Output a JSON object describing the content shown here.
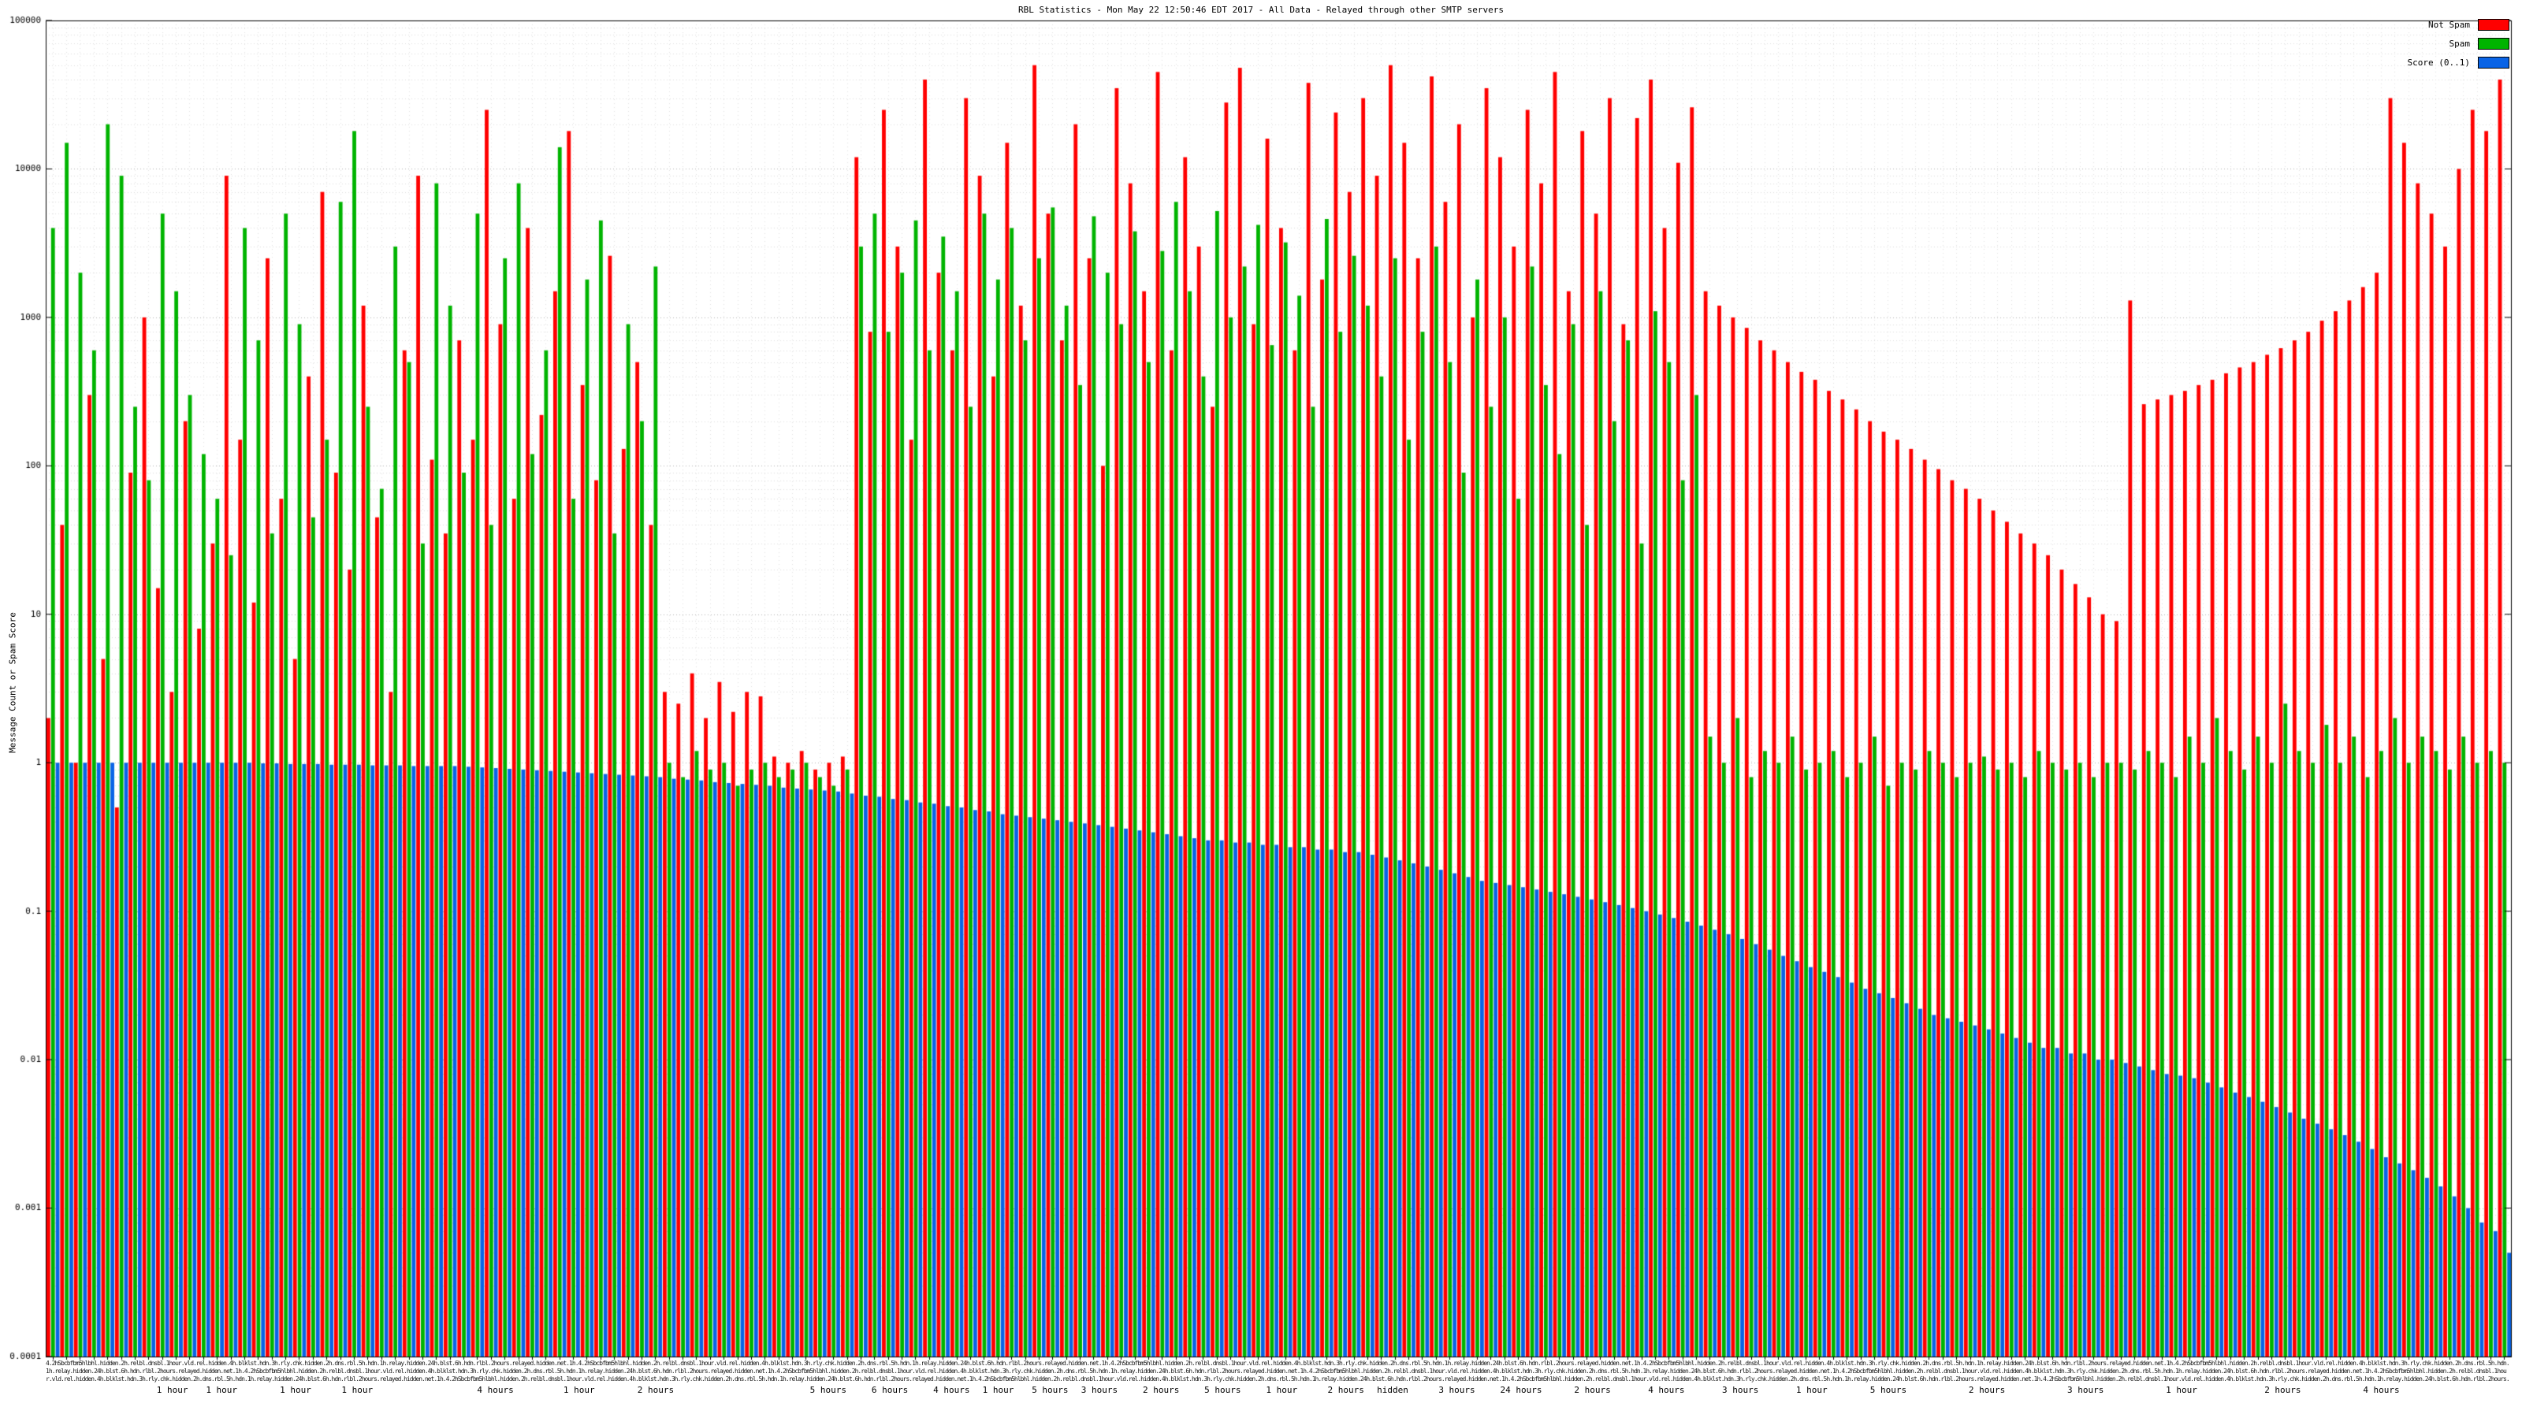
{
  "title": "RBL Statistics - Mon May 22 12:50:46 EDT 2017 - All Data - Relayed through other SMTP servers",
  "y_axis": {
    "label": "Message Count or Spam Score",
    "scale": "log",
    "min": 0.0001,
    "max": 100000,
    "ticks": [
      100000,
      10000,
      1000,
      100,
      10,
      1,
      0.1,
      0.01,
      0.001,
      0.0001
    ]
  },
  "x_axis": {
    "dense_label_texture": "4.2hSbcbfbm5hlbhl.hidden.2h.relbl.dnsbl.1hour.vld.rel.hidden.4h.blklst.hdn.3h.rly.chk.hidden.2h.dns.rbl.5h.hdn.1h.relay.hidden.24h.blst.6h.hdn.rlbl.2hours.relayed.hidden.net.1h.",
    "time_labels": [
      {
        "text": "1 hour",
        "pos": 4.5
      },
      {
        "text": "1 hour",
        "pos": 6.5
      },
      {
        "text": "1 hour",
        "pos": 9.5
      },
      {
        "text": "1 hour",
        "pos": 12.0
      },
      {
        "text": "4 hours",
        "pos": 17.5
      },
      {
        "text": "1 hour",
        "pos": 21.0
      },
      {
        "text": "2 hours",
        "pos": 24.0
      },
      {
        "text": "5 hours",
        "pos": 31.0
      },
      {
        "text": "6 hours",
        "pos": 33.5
      },
      {
        "text": "4 hours",
        "pos": 36.0
      },
      {
        "text": "1 hour",
        "pos": 38.0
      },
      {
        "text": "5 hours",
        "pos": 40.0
      },
      {
        "text": "3 hours",
        "pos": 42.0
      },
      {
        "text": "2 hours",
        "pos": 44.5
      },
      {
        "text": "5 hours",
        "pos": 47.0
      },
      {
        "text": "1 hour",
        "pos": 49.5
      },
      {
        "text": "2 hours",
        "pos": 52.0
      },
      {
        "text": "hidden",
        "pos": 54.0
      },
      {
        "text": "3 hours",
        "pos": 56.5
      },
      {
        "text": "24 hours",
        "pos": 59.0
      },
      {
        "text": "2 hours",
        "pos": 62.0
      },
      {
        "text": "4 hours",
        "pos": 65.0
      },
      {
        "text": "3 hours",
        "pos": 68.0
      },
      {
        "text": "1 hour",
        "pos": 71.0
      },
      {
        "text": "5 hours",
        "pos": 74.0
      },
      {
        "text": "2 hours",
        "pos": 78.0
      },
      {
        "text": "3 hours",
        "pos": 82.0
      },
      {
        "text": "1 hour",
        "pos": 86.0
      },
      {
        "text": "2 hours",
        "pos": 90.0
      },
      {
        "text": "4 hours",
        "pos": 94.0
      }
    ]
  },
  "chart_data": {
    "type": "bar",
    "yscale": "log",
    "ylim": [
      0.0001,
      100000
    ],
    "grid": true,
    "legend_position": "top-right",
    "series": [
      {
        "name": "Not Spam",
        "color": "#ff0000",
        "values": [
          2,
          40,
          1,
          300,
          5,
          0.5,
          90,
          1000,
          15,
          3,
          200,
          8,
          30,
          9000,
          150,
          12,
          2500,
          60,
          5,
          400,
          7000,
          90,
          20,
          1200,
          45,
          3,
          600,
          9000,
          110,
          35,
          700,
          150,
          25000,
          900,
          60,
          4000,
          220,
          1500,
          18000,
          350,
          80,
          2600,
          130,
          500,
          40,
          3,
          2.5,
          4,
          2,
          3.5,
          2.2,
          3,
          2.8,
          1.1,
          1,
          1.2,
          0.9,
          1,
          1.1,
          12000,
          800,
          25000,
          3000,
          150,
          40000,
          2000,
          600,
          30000,
          9000,
          400,
          15000,
          1200,
          50000,
          5000,
          700,
          20000,
          2500,
          100,
          35000,
          8000,
          1500,
          45000,
          600,
          12000,
          3000,
          250,
          28000,
          48000,
          900,
          16000,
          4000,
          600,
          38000,
          1800,
          24000,
          7000,
          30000,
          9000,
          50000,
          15000,
          2500,
          42000,
          6000,
          20000,
          1000,
          35000,
          12000,
          3000,
          25000,
          8000,
          45000,
          1500,
          18000,
          5000,
          30000,
          900,
          22000,
          40000,
          4000,
          11000,
          26000,
          1500,
          1200,
          1000,
          850,
          700,
          600,
          500,
          430,
          380,
          320,
          280,
          240,
          200,
          170,
          150,
          130,
          110,
          95,
          80,
          70,
          60,
          50,
          42,
          35,
          30,
          25,
          20,
          16,
          13,
          10,
          9,
          1300,
          260,
          280,
          300,
          320,
          350,
          380,
          420,
          460,
          500,
          560,
          620,
          700,
          800,
          950,
          1100,
          1300,
          1600,
          2000,
          30000,
          15000,
          8000,
          5000,
          3000,
          10000,
          25000,
          18000,
          40000
        ]
      },
      {
        "name": "Spam",
        "color": "#00b400",
        "values": [
          4000,
          15000,
          2000,
          600,
          20000,
          9000,
          250,
          80,
          5000,
          1500,
          300,
          120,
          60,
          25,
          4000,
          700,
          35,
          5000,
          900,
          45,
          150,
          6000,
          18000,
          250,
          70,
          3000,
          500,
          30,
          8000,
          1200,
          90,
          5000,
          40,
          2500,
          8000,
          120,
          600,
          14000,
          60,
          1800,
          4500,
          35,
          900,
          200,
          2200,
          1,
          0.8,
          1.2,
          0.9,
          1,
          0.7,
          0.9,
          1,
          0.8,
          0.9,
          1,
          0.8,
          0.7,
          0.9,
          3000,
          5000,
          800,
          2000,
          4500,
          600,
          3500,
          1500,
          250,
          5000,
          1800,
          4000,
          700,
          2500,
          5500,
          1200,
          350,
          4800,
          2000,
          900,
          3800,
          500,
          2800,
          6000,
          1500,
          400,
          5200,
          1000,
          2200,
          4200,
          650,
          3200,
          1400,
          250,
          4600,
          800,
          2600,
          1200,
          400,
          2500,
          150,
          800,
          3000,
          500,
          90,
          1800,
          250,
          1000,
          60,
          2200,
          350,
          120,
          900,
          40,
          1500,
          200,
          700,
          30,
          1100,
          500,
          80,
          300,
          1.5,
          1,
          2,
          0.8,
          1.2,
          1,
          1.5,
          0.9,
          1,
          1.2,
          0.8,
          1,
          1.5,
          0.7,
          1,
          0.9,
          1.2,
          1,
          0.8,
          1,
          1.1,
          0.9,
          1,
          0.8,
          1.2,
          1,
          0.9,
          1,
          0.8,
          1,
          1,
          0.9,
          1.2,
          1,
          0.8,
          1.5,
          1,
          2,
          1.2,
          0.9,
          1.5,
          1,
          2.5,
          1.2,
          1,
          1.8,
          1,
          1.5,
          0.8,
          1.2,
          2,
          1,
          1.5,
          1.2,
          0.9,
          1.5,
          1,
          1.2,
          1
        ]
      },
      {
        "name": "Score (0..1)",
        "color": "#0a64e6",
        "values": [
          1,
          1,
          1,
          1,
          1,
          1,
          1,
          1,
          1,
          1,
          1,
          1,
          1,
          1,
          1,
          0.99,
          0.99,
          0.98,
          0.98,
          0.98,
          0.97,
          0.97,
          0.97,
          0.96,
          0.96,
          0.96,
          0.95,
          0.95,
          0.95,
          0.95,
          0.94,
          0.93,
          0.92,
          0.91,
          0.9,
          0.89,
          0.88,
          0.87,
          0.86,
          0.85,
          0.84,
          0.83,
          0.82,
          0.81,
          0.8,
          0.78,
          0.77,
          0.76,
          0.74,
          0.73,
          0.72,
          0.71,
          0.7,
          0.68,
          0.67,
          0.66,
          0.65,
          0.64,
          0.62,
          0.6,
          0.59,
          0.57,
          0.56,
          0.54,
          0.53,
          0.51,
          0.5,
          0.48,
          0.47,
          0.45,
          0.44,
          0.43,
          0.42,
          0.41,
          0.4,
          0.39,
          0.38,
          0.37,
          0.36,
          0.35,
          0.34,
          0.33,
          0.32,
          0.31,
          0.3,
          0.3,
          0.29,
          0.29,
          0.28,
          0.28,
          0.27,
          0.27,
          0.26,
          0.26,
          0.25,
          0.25,
          0.24,
          0.23,
          0.22,
          0.21,
          0.2,
          0.19,
          0.18,
          0.17,
          0.16,
          0.155,
          0.15,
          0.145,
          0.14,
          0.135,
          0.13,
          0.125,
          0.12,
          0.115,
          0.11,
          0.105,
          0.1,
          0.095,
          0.09,
          0.085,
          0.08,
          0.075,
          0.07,
          0.065,
          0.06,
          0.055,
          0.05,
          0.046,
          0.042,
          0.039,
          0.036,
          0.033,
          0.03,
          0.028,
          0.026,
          0.024,
          0.022,
          0.02,
          0.019,
          0.018,
          0.017,
          0.016,
          0.015,
          0.014,
          0.013,
          0.012,
          0.012,
          0.011,
          0.011,
          0.01,
          0.01,
          0.0095,
          0.009,
          0.0085,
          0.008,
          0.0078,
          0.0075,
          0.007,
          0.0065,
          0.006,
          0.0056,
          0.0052,
          0.0048,
          0.0044,
          0.004,
          0.0037,
          0.0034,
          0.0031,
          0.0028,
          0.0025,
          0.0022,
          0.002,
          0.0018,
          0.0016,
          0.0014,
          0.0012,
          0.001,
          0.0008,
          0.0007,
          0.0005
        ]
      }
    ]
  }
}
